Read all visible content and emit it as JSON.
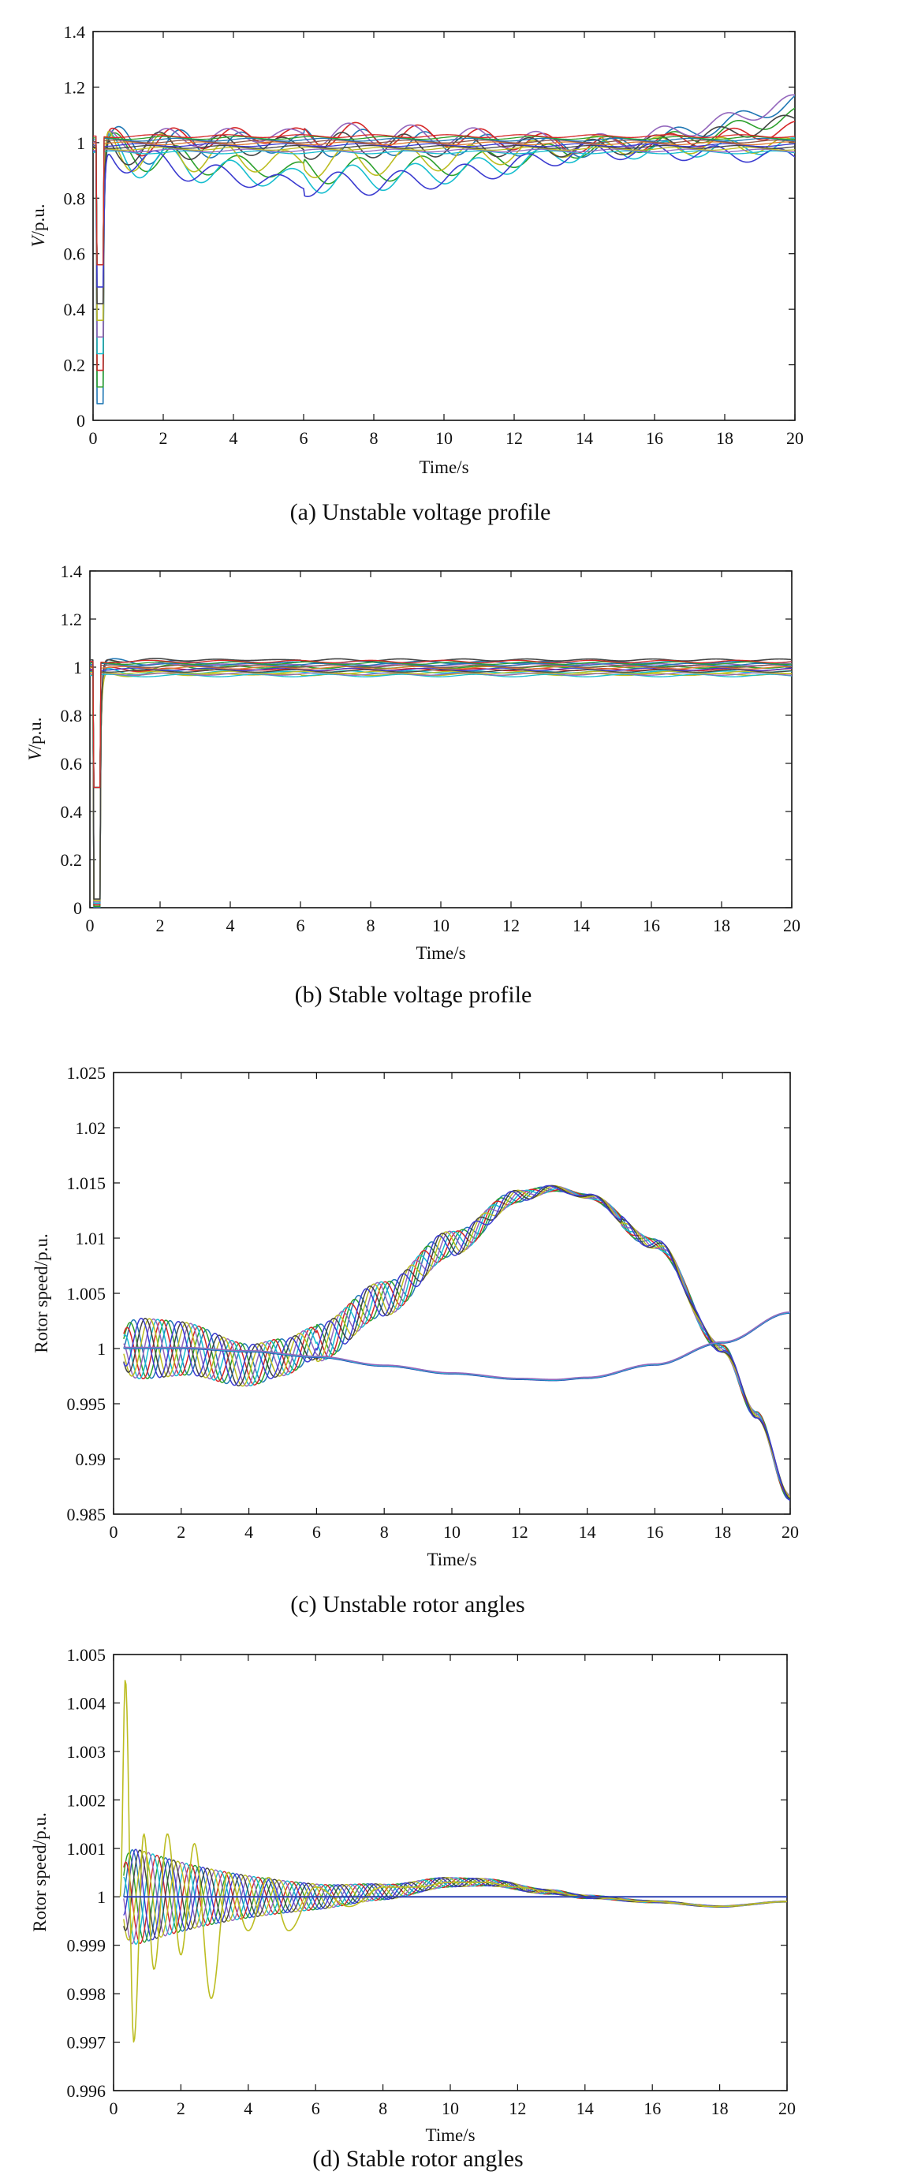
{
  "colors": {
    "series": [
      "#1f77b4",
      "#2ca02c",
      "#d62728",
      "#17becf",
      "#9467bd",
      "#bcbd22",
      "#444444",
      "#3b3bd0",
      "#e07a2e",
      "#8c564b"
    ],
    "flat_line": "#2b3fb0",
    "axis": "#111111"
  },
  "chart_data": [
    {
      "id": "a",
      "type": "line",
      "caption": "(a) Unstable voltage profile",
      "xlabel": "Time/s",
      "ylabel_var": "V",
      "ylabel_unit": "/p.u.",
      "xlim": [
        0,
        20
      ],
      "ylim": [
        0,
        1.4
      ],
      "xticks": [
        0,
        2,
        4,
        6,
        8,
        10,
        12,
        14,
        16,
        18,
        20
      ],
      "xtick_labels": [
        "0",
        "2",
        "4",
        "6",
        "8",
        "10",
        "12",
        "14",
        "16",
        "18",
        "20"
      ],
      "yticks": [
        0,
        0.2,
        0.4,
        0.6,
        0.8,
        1.0,
        1.2,
        1.4
      ],
      "ytick_labels": [
        "0",
        "0.2",
        "0.4",
        "0.6",
        "0.8",
        "1",
        "1.2",
        "1.4"
      ],
      "grid": false,
      "fault": {
        "start": 0.1,
        "clear": 0.3,
        "dip_min": 0.06
      },
      "series": [
        {
          "base": 0.98,
          "osc": 0.08,
          "drift_mid": 0.02,
          "drift_end": 0.17
        },
        {
          "base": 0.98,
          "osc": 0.07,
          "drift_mid": -0.08,
          "drift_end": 0.12
        },
        {
          "base": 0.99,
          "osc": 0.06,
          "drift_mid": 0.04,
          "drift_end": 0.06
        },
        {
          "base": 0.97,
          "osc": 0.08,
          "drift_mid": -0.1,
          "drift_end": 0.02
        },
        {
          "base": 1.0,
          "osc": 0.05,
          "drift_mid": 0.03,
          "drift_end": 0.15
        },
        {
          "base": 0.99,
          "osc": 0.09,
          "drift_mid": -0.06,
          "drift_end": 0.0
        },
        {
          "base": 0.98,
          "osc": 0.07,
          "drift_mid": 0.01,
          "drift_end": 0.1
        },
        {
          "base": 0.97,
          "osc": 0.06,
          "drift_mid": -0.12,
          "drift_end": -0.02
        }
      ]
    },
    {
      "id": "b",
      "type": "line",
      "caption": "(b) Stable voltage profile",
      "xlabel": "Time/s",
      "ylabel_var": "V",
      "ylabel_unit": "/p.u.",
      "xlim": [
        0,
        20
      ],
      "ylim": [
        0,
        1.4
      ],
      "xticks": [
        0,
        2,
        4,
        6,
        8,
        10,
        12,
        14,
        16,
        18,
        20
      ],
      "xtick_labels": [
        "0",
        "2",
        "4",
        "6",
        "8",
        "10",
        "12",
        "14",
        "16",
        "18",
        "20"
      ],
      "yticks": [
        0,
        0.2,
        0.4,
        0.6,
        0.8,
        1.0,
        1.2,
        1.4
      ],
      "ytick_labels": [
        "0",
        "0.2",
        "0.4",
        "0.6",
        "0.8",
        "1",
        "1.2",
        "1.4"
      ],
      "grid": false,
      "fault": {
        "start": 0.1,
        "clear": 0.3,
        "dip_min": 0.0
      },
      "series": [
        {
          "base": 1.02,
          "osc": 0.03,
          "drift_mid": 0.0,
          "drift_end": 0.0
        },
        {
          "base": 1.0,
          "osc": 0.04,
          "drift_mid": 0.0,
          "drift_end": 0.0
        },
        {
          "base": 0.99,
          "osc": 0.02,
          "drift_mid": 0.0,
          "drift_end": 0.0
        },
        {
          "base": 0.98,
          "osc": 0.03,
          "drift_mid": 0.0,
          "drift_end": 0.0
        },
        {
          "base": 1.01,
          "osc": 0.02,
          "drift_mid": 0.0,
          "drift_end": 0.0
        },
        {
          "base": 0.97,
          "osc": 0.02,
          "drift_mid": 0.0,
          "drift_end": 0.0
        },
        {
          "base": 1.03,
          "osc": 0.02,
          "drift_mid": 0.0,
          "drift_end": 0.0
        }
      ]
    },
    {
      "id": "c",
      "type": "line",
      "caption": "(c) Unstable rotor angles",
      "xlabel": "Time/s",
      "ylabel": "Rotor speed/p.u.",
      "xlim": [
        0,
        20
      ],
      "ylim": [
        0.985,
        1.025
      ],
      "xticks": [
        0,
        2,
        4,
        6,
        8,
        10,
        12,
        14,
        16,
        18,
        20
      ],
      "xtick_labels": [
        "0",
        "2",
        "4",
        "6",
        "8",
        "10",
        "12",
        "14",
        "16",
        "18",
        "20"
      ],
      "yticks": [
        0.985,
        0.99,
        0.995,
        1.0,
        1.005,
        1.01,
        1.015,
        1.02,
        1.025
      ],
      "ytick_labels": [
        "0.985",
        "0.99",
        "0.995",
        "1",
        "1.005",
        "1.01",
        "1.015",
        "1.02",
        "1.025"
      ],
      "grid": false,
      "upper_group": {
        "count": 8,
        "points": [
          [
            0.3,
            1.0
          ],
          [
            2,
            1.0
          ],
          [
            4,
            0.9985
          ],
          [
            5,
            0.9992
          ],
          [
            6,
            1.0005
          ],
          [
            8,
            1.0045
          ],
          [
            10,
            1.0095
          ],
          [
            12,
            1.0138
          ],
          [
            13,
            1.0145
          ],
          [
            14,
            1.0138
          ],
          [
            16,
            1.0095
          ],
          [
            18,
            1.0
          ],
          [
            19,
            0.994
          ],
          [
            20,
            0.9865
          ]
        ],
        "osc_amp": 0.003,
        "osc_decay_t": 8,
        "late_amp": 0.0004
      },
      "lower_group": {
        "count": 3,
        "points": [
          [
            0.3,
            1.0
          ],
          [
            2,
            1.0
          ],
          [
            4,
            0.9997
          ],
          [
            6,
            0.9992
          ],
          [
            8,
            0.9984
          ],
          [
            10,
            0.9977
          ],
          [
            12,
            0.9972
          ],
          [
            13,
            0.9971
          ],
          [
            14,
            0.9973
          ],
          [
            16,
            0.9985
          ],
          [
            18,
            1.0005
          ],
          [
            20,
            1.0032
          ]
        ]
      }
    },
    {
      "id": "d",
      "type": "line",
      "caption": "(d) Stable rotor angles",
      "xlabel": "Time/s",
      "ylabel": "Rotor speed/p.u.",
      "xlim": [
        0,
        20
      ],
      "ylim": [
        0.996,
        1.005
      ],
      "xticks": [
        0,
        2,
        4,
        6,
        8,
        10,
        12,
        14,
        16,
        18,
        20
      ],
      "xtick_labels": [
        "0",
        "2",
        "4",
        "6",
        "8",
        "10",
        "12",
        "14",
        "16",
        "18",
        "20"
      ],
      "yticks": [
        0.996,
        0.997,
        0.998,
        0.999,
        1.0,
        1.001,
        1.002,
        1.003,
        1.004,
        1.005
      ],
      "ytick_labels": [
        "0.996",
        "0.997",
        "0.998",
        "0.999",
        "1",
        "1.001",
        "1.002",
        "1.003",
        "1.004",
        "1.005"
      ],
      "grid": false,
      "spike_series": {
        "points": [
          [
            0.2,
            1.0
          ],
          [
            0.35,
            1.0045
          ],
          [
            0.6,
            0.997
          ],
          [
            0.9,
            1.0013
          ],
          [
            1.2,
            0.9985
          ],
          [
            1.6,
            1.0013
          ],
          [
            2.0,
            0.9988
          ],
          [
            2.4,
            1.0011
          ],
          [
            2.9,
            0.9979
          ],
          [
            3.4,
            1.0005
          ],
          [
            4.0,
            0.9993
          ],
          [
            4.6,
            1.0004
          ],
          [
            5.2,
            0.9993
          ],
          [
            6.0,
            1.0002
          ],
          [
            7.0,
            0.9998
          ],
          [
            8.0,
            1.0002
          ],
          [
            9.0,
            1.0002
          ],
          [
            10.0,
            1.0003
          ],
          [
            11.0,
            1.0003
          ],
          [
            12.0,
            1.0002
          ],
          [
            13.0,
            1.0001
          ],
          [
            14.0,
            1.0
          ],
          [
            16.0,
            0.9999
          ],
          [
            18.0,
            0.9998
          ],
          [
            20.0,
            0.9999
          ]
        ]
      },
      "oscillating_group": {
        "count": 8,
        "amp": 0.0011,
        "decay_t": 4,
        "envelope": [
          [
            0.2,
            1.0
          ],
          [
            6,
            1.0
          ],
          [
            8,
            1.0001
          ],
          [
            10,
            1.0003
          ],
          [
            11,
            1.0003
          ],
          [
            13,
            1.0001
          ],
          [
            14,
            1.0
          ],
          [
            16,
            0.9999
          ],
          [
            18,
            0.9998
          ],
          [
            20,
            0.9999
          ]
        ]
      },
      "flat_series_value": 1.0
    }
  ]
}
